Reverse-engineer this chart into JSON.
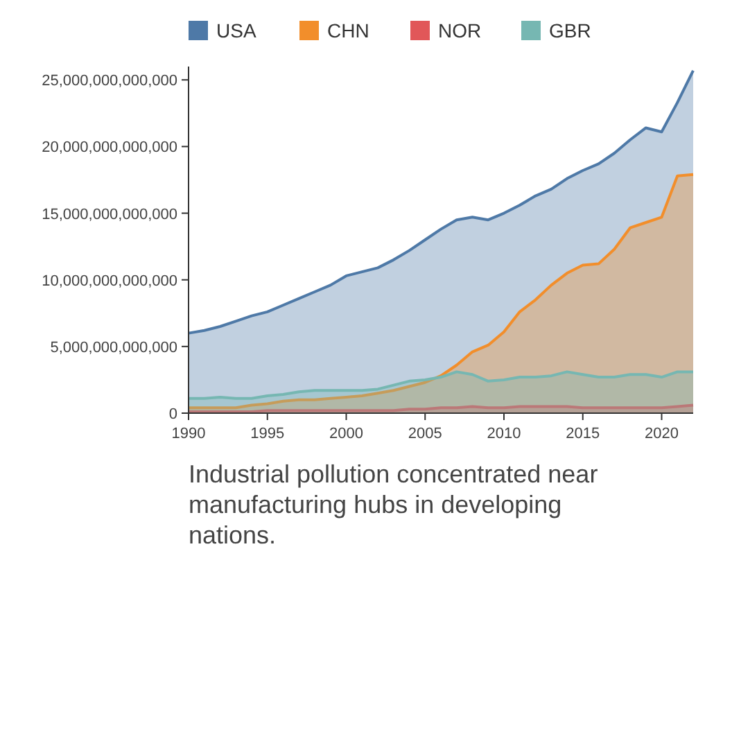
{
  "chart_data": {
    "type": "area",
    "legend": "top",
    "xlim": [
      1990,
      2022
    ],
    "xticks": [
      1990,
      1995,
      2000,
      2005,
      2010,
      2015,
      2020
    ],
    "ylim": [
      0,
      26000000000000.0
    ],
    "yticks": [
      {
        "value": 0,
        "label": "0"
      },
      {
        "value": 5000000000000.0,
        "label": "5,000,000,000,000"
      },
      {
        "value": 10000000000000.0,
        "label": "10,000,000,000,000"
      },
      {
        "value": 15000000000000.0,
        "label": "15,000,000,000,000"
      },
      {
        "value": 20000000000000.0,
        "label": "20,000,000,000,000"
      },
      {
        "value": 25000000000000.0,
        "label": "25,000,000,000,000"
      }
    ],
    "x": [
      1990,
      1991,
      1992,
      1993,
      1994,
      1995,
      1996,
      1997,
      1998,
      1999,
      2000,
      2001,
      2002,
      2003,
      2004,
      2005,
      2006,
      2007,
      2008,
      2009,
      2010,
      2011,
      2012,
      2013,
      2014,
      2015,
      2016,
      2017,
      2018,
      2019,
      2020,
      2021,
      2022
    ],
    "series": [
      {
        "name": "USA",
        "color": "#4e79a7",
        "values": [
          6000000000000.0,
          6200000000000.0,
          6500000000000.0,
          6900000000000.0,
          7300000000000.0,
          7600000000000.0,
          8100000000000.0,
          8600000000000.0,
          9100000000000.0,
          9600000000000.0,
          10300000000000.0,
          10600000000000.0,
          10900000000000.0,
          11500000000000.0,
          12200000000000.0,
          13000000000000.0,
          13800000000000.0,
          14500000000000.0,
          14700000000000.0,
          14500000000000.0,
          15000000000000.0,
          15600000000000.0,
          16300000000000.0,
          16800000000000.0,
          17600000000000.0,
          18200000000000.0,
          18700000000000.0,
          19500000000000.0,
          20500000000000.0,
          21400000000000.0,
          21100000000000.0,
          23300000000000.0,
          25700000000000.0
        ]
      },
      {
        "name": "CHN",
        "color": "#f28e2b",
        "values": [
          400000000000.0,
          400000000000.0,
          400000000000.0,
          400000000000.0,
          600000000000.0,
          700000000000.0,
          900000000000.0,
          1000000000000.0,
          1000000000000.0,
          1100000000000.0,
          1200000000000.0,
          1300000000000.0,
          1500000000000.0,
          1700000000000.0,
          2000000000000.0,
          2300000000000.0,
          2800000000000.0,
          3600000000000.0,
          4600000000000.0,
          5100000000000.0,
          6100000000000.0,
          7600000000000.0,
          8500000000000.0,
          9600000000000.0,
          10500000000000.0,
          11100000000000.0,
          11200000000000.0,
          12300000000000.0,
          13900000000000.0,
          14300000000000.0,
          14700000000000.0,
          17800000000000.0,
          17900000000000.0
        ]
      },
      {
        "name": "NOR",
        "color": "#e15759",
        "values": [
          100000000000.0,
          100000000000.0,
          100000000000.0,
          100000000000.0,
          100000000000.0,
          200000000000.0,
          200000000000.0,
          200000000000.0,
          200000000000.0,
          200000000000.0,
          200000000000.0,
          200000000000.0,
          200000000000.0,
          200000000000.0,
          300000000000.0,
          300000000000.0,
          400000000000.0,
          400000000000.0,
          500000000000.0,
          400000000000.0,
          400000000000.0,
          500000000000.0,
          500000000000.0,
          500000000000.0,
          500000000000.0,
          400000000000.0,
          400000000000.0,
          400000000000.0,
          400000000000.0,
          400000000000.0,
          400000000000.0,
          500000000000.0,
          600000000000.0
        ]
      },
      {
        "name": "GBR",
        "color": "#76b7b2",
        "values": [
          1100000000000.0,
          1100000000000.0,
          1200000000000.0,
          1100000000000.0,
          1100000000000.0,
          1300000000000.0,
          1400000000000.0,
          1600000000000.0,
          1700000000000.0,
          1700000000000.0,
          1700000000000.0,
          1700000000000.0,
          1800000000000.0,
          2100000000000.0,
          2400000000000.0,
          2500000000000.0,
          2700000000000.0,
          3100000000000.0,
          2900000000000.0,
          2400000000000.0,
          2500000000000.0,
          2700000000000.0,
          2700000000000.0,
          2800000000000.0,
          3100000000000.0,
          2900000000000.0,
          2700000000000.0,
          2700000000000.0,
          2900000000000.0,
          2900000000000.0,
          2700000000000.0,
          3100000000000.0,
          3100000000000.0
        ]
      }
    ],
    "annotations": [
      "Industrial pollution concentrated near manufacturing hubs in developing nations."
    ]
  }
}
